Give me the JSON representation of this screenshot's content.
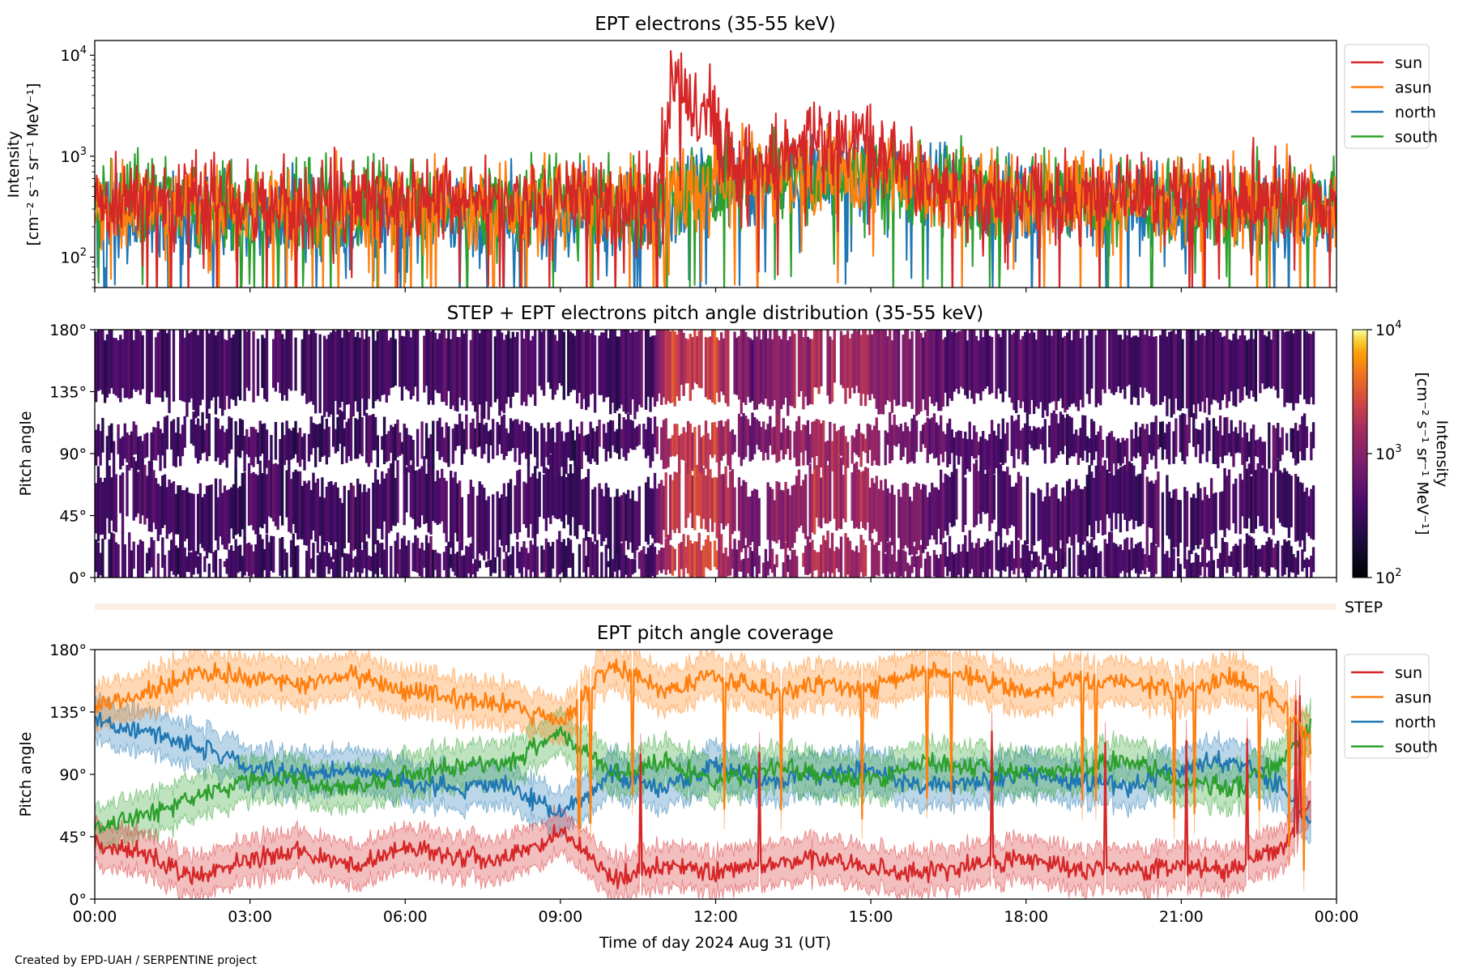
{
  "footer_credit": "Created by EPD-UAH / SERPENTINE project",
  "chart_data": [
    {
      "type": "line",
      "title": "EPT electrons (35-55 keV)",
      "ylabel_line1": "Intensity",
      "ylabel_line2": "[cm⁻² s⁻¹ sr⁻¹ MeV⁻¹]",
      "y_scale": "log",
      "ylim": [
        50,
        14000
      ],
      "y_ticks": [
        {
          "value": 100,
          "base": "10",
          "exp": "2"
        },
        {
          "value": 1000,
          "base": "10",
          "exp": "3"
        },
        {
          "value": 10000,
          "base": "10",
          "exp": "4"
        }
      ],
      "xlim_hours": [
        0,
        24
      ],
      "x_tick_labels_shown": false,
      "legend_position": "outside-right-top",
      "series": [
        {
          "name": "sun",
          "color": "#d62728",
          "x_hours": [
            0,
            1,
            2,
            3,
            4,
            5,
            6,
            7,
            8,
            9,
            10,
            10.8,
            11.0,
            11.1,
            11.3,
            11.5,
            11.7,
            11.9,
            12.1,
            12.4,
            12.8,
            13.2,
            13.6,
            14.0,
            14.5,
            15.0,
            15.5,
            16,
            17,
            18,
            19,
            20,
            21,
            22,
            23,
            24
          ],
          "values": [
            350,
            380,
            340,
            360,
            330,
            370,
            350,
            360,
            340,
            380,
            360,
            400,
            1200,
            3500,
            5200,
            2400,
            1800,
            3200,
            1500,
            800,
            650,
            900,
            1250,
            1500,
            1400,
            1200,
            800,
            600,
            420,
            390,
            380,
            400,
            370,
            360,
            390,
            350
          ]
        },
        {
          "name": "asun",
          "color": "#ff7f0e",
          "x_hours": [
            0,
            2,
            4,
            6,
            8,
            9,
            10,
            11,
            11.4,
            12,
            13,
            14,
            15,
            16,
            18,
            20,
            22,
            24
          ],
          "values": [
            320,
            310,
            300,
            320,
            300,
            340,
            330,
            330,
            450,
            520,
            600,
            650,
            620,
            520,
            380,
            340,
            330,
            310
          ]
        },
        {
          "name": "north",
          "color": "#1f77b4",
          "x_hours": [
            0,
            2,
            4,
            6,
            8,
            9,
            10,
            11,
            11.4,
            12,
            13,
            14,
            15,
            16,
            18,
            20,
            22,
            24
          ],
          "values": [
            250,
            240,
            230,
            250,
            240,
            260,
            250,
            260,
            420,
            500,
            620,
            660,
            640,
            520,
            350,
            300,
            280,
            260
          ]
        },
        {
          "name": "south",
          "color": "#2ca02c",
          "x_hours": [
            0,
            2,
            4,
            6,
            8,
            9,
            10,
            11,
            11.4,
            12,
            13,
            14,
            15,
            16,
            18,
            20,
            22,
            24
          ],
          "values": [
            330,
            320,
            310,
            330,
            320,
            350,
            340,
            340,
            470,
            530,
            610,
            640,
            610,
            530,
            400,
            360,
            350,
            340
          ]
        }
      ]
    },
    {
      "type": "heatmap",
      "title": "STEP + EPT electrons pitch angle distribution (35-55 keV)",
      "ylabel": "Pitch angle",
      "y_ticks": [
        "0°",
        "45°",
        "90°",
        "135°",
        "180°"
      ],
      "ylim": [
        0,
        180
      ],
      "xlim_hours": [
        0,
        24
      ],
      "x_tick_labels_shown": false,
      "colorbar": {
        "label_line1": "Intensity",
        "label_line2": "[cm⁻² s⁻¹ sr⁻¹ MeV⁻¹]",
        "scale": "log",
        "range": [
          100,
          10000
        ],
        "colormap": "inferno",
        "ticks": [
          {
            "value": 100,
            "base": "10",
            "exp": "2"
          },
          {
            "value": 1000,
            "base": "10",
            "exp": "3"
          },
          {
            "value": 10000,
            "base": "10",
            "exp": "4"
          }
        ]
      },
      "strip_label": "STEP"
    },
    {
      "type": "line",
      "title": "EPT pitch angle coverage",
      "ylabel": "Pitch angle",
      "ylim": [
        0,
        180
      ],
      "y_ticks": [
        "0°",
        "45°",
        "90°",
        "135°",
        "180°"
      ],
      "xlabel": "Time of day 2024 Aug 31 (UT)",
      "x_tick_labels": [
        "00:00",
        "03:00",
        "06:00",
        "09:00",
        "12:00",
        "15:00",
        "18:00",
        "21:00",
        "00:00"
      ],
      "xlim_hours": [
        0,
        24
      ],
      "legend_position": "outside-right-top",
      "series": [
        {
          "name": "sun",
          "color": "#d62728",
          "x_hours": [
            0,
            1,
            2,
            3,
            4,
            5,
            6,
            7,
            8,
            9,
            10,
            11,
            12,
            13,
            14,
            15,
            16,
            17,
            18,
            19,
            20,
            21,
            22,
            23,
            23.5
          ],
          "values": [
            40,
            32,
            15,
            30,
            35,
            22,
            38,
            30,
            28,
            50,
            15,
            25,
            18,
            25,
            30,
            22,
            18,
            25,
            30,
            22,
            20,
            25,
            20,
            40,
            70
          ]
        },
        {
          "name": "asun",
          "color": "#ff7f0e",
          "x_hours": [
            0,
            1,
            2,
            3,
            4,
            5,
            6,
            7,
            8,
            9,
            10,
            11,
            12,
            13,
            14,
            15,
            16,
            17,
            18,
            19,
            20,
            21,
            22,
            23,
            23.5
          ],
          "values": [
            140,
            148,
            165,
            160,
            155,
            162,
            150,
            145,
            140,
            125,
            170,
            150,
            160,
            150,
            155,
            150,
            165,
            160,
            150,
            160,
            155,
            150,
            160,
            140,
            110
          ]
        },
        {
          "name": "north",
          "color": "#1f77b4",
          "x_hours": [
            0,
            1,
            2,
            3,
            4,
            5,
            6,
            7,
            8,
            9,
            10,
            11,
            12,
            13,
            14,
            15,
            16,
            17,
            18,
            19,
            20,
            21,
            22,
            23,
            23.5
          ],
          "values": [
            130,
            120,
            110,
            95,
            90,
            95,
            85,
            80,
            82,
            60,
            90,
            80,
            95,
            85,
            90,
            95,
            80,
            85,
            90,
            85,
            80,
            95,
            100,
            80,
            55
          ]
        },
        {
          "name": "south",
          "color": "#2ca02c",
          "x_hours": [
            0,
            1,
            2,
            3,
            4,
            5,
            6,
            7,
            8,
            9,
            10,
            11,
            12,
            13,
            14,
            15,
            16,
            17,
            18,
            19,
            20,
            21,
            22,
            23,
            23.5
          ],
          "values": [
            50,
            60,
            75,
            85,
            85,
            80,
            90,
            95,
            98,
            120,
            90,
            100,
            85,
            95,
            90,
            85,
            100,
            95,
            90,
            95,
            100,
            85,
            80,
            100,
            125
          ]
        }
      ]
    }
  ]
}
